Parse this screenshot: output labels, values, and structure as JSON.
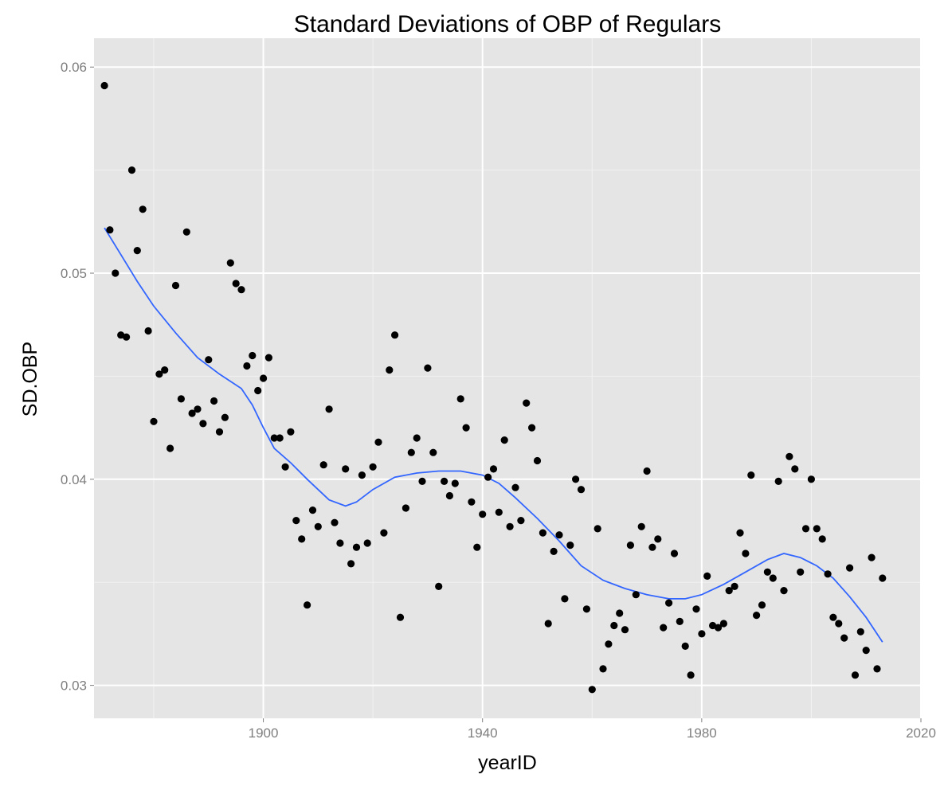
{
  "chart_data": {
    "type": "scatter",
    "title": "Standard Deviations of OBP of Regulars",
    "xlabel": "yearID",
    "ylabel": "SD.OBP",
    "xlim": [
      1869.1,
      2020
    ],
    "ylim": [
      0.0284,
      0.0614
    ],
    "x_ticks": [
      1900,
      1940,
      1980,
      2020
    ],
    "x_tick_labels": [
      "1900",
      "1940",
      "1980",
      "2020"
    ],
    "y_ticks": [
      0.03,
      0.04,
      0.05,
      0.06
    ],
    "y_tick_labels": [
      "0.03",
      "0.04",
      "0.05",
      "0.06"
    ],
    "grid": true,
    "colors": {
      "panel": "#e5e5e5",
      "grid": "#ffffff",
      "points": "#000000",
      "smooth": "#3366ff"
    },
    "points": [
      [
        1871,
        0.0591
      ],
      [
        1872,
        0.0521
      ],
      [
        1873,
        0.05
      ],
      [
        1874,
        0.047
      ],
      [
        1875,
        0.0469
      ],
      [
        1876,
        0.055
      ],
      [
        1877,
        0.0511
      ],
      [
        1878,
        0.0531
      ],
      [
        1879,
        0.0472
      ],
      [
        1880,
        0.0428
      ],
      [
        1881,
        0.0451
      ],
      [
        1882,
        0.0453
      ],
      [
        1883,
        0.0415
      ],
      [
        1884,
        0.0494
      ],
      [
        1885,
        0.0439
      ],
      [
        1886,
        0.052
      ],
      [
        1887,
        0.0432
      ],
      [
        1888,
        0.0434
      ],
      [
        1889,
        0.0427
      ],
      [
        1890,
        0.0458
      ],
      [
        1891,
        0.0438
      ],
      [
        1892,
        0.0423
      ],
      [
        1893,
        0.043
      ],
      [
        1894,
        0.0505
      ],
      [
        1895,
        0.0495
      ],
      [
        1896,
        0.0492
      ],
      [
        1897,
        0.0455
      ],
      [
        1898,
        0.046
      ],
      [
        1899,
        0.0443
      ],
      [
        1900,
        0.0449
      ],
      [
        1901,
        0.0459
      ],
      [
        1902,
        0.042
      ],
      [
        1903,
        0.042
      ],
      [
        1904,
        0.0406
      ],
      [
        1905,
        0.0423
      ],
      [
        1906,
        0.038
      ],
      [
        1907,
        0.0371
      ],
      [
        1908,
        0.0339
      ],
      [
        1909,
        0.0385
      ],
      [
        1910,
        0.0377
      ],
      [
        1911,
        0.0407
      ],
      [
        1912,
        0.0434
      ],
      [
        1913,
        0.0379
      ],
      [
        1914,
        0.0369
      ],
      [
        1915,
        0.0405
      ],
      [
        1916,
        0.0359
      ],
      [
        1917,
        0.0367
      ],
      [
        1918,
        0.0402
      ],
      [
        1919,
        0.0369
      ],
      [
        1920,
        0.0406
      ],
      [
        1921,
        0.0418
      ],
      [
        1922,
        0.0374
      ],
      [
        1923,
        0.0453
      ],
      [
        1924,
        0.047
      ],
      [
        1925,
        0.0333
      ],
      [
        1926,
        0.0386
      ],
      [
        1927,
        0.0413
      ],
      [
        1928,
        0.042
      ],
      [
        1929,
        0.0399
      ],
      [
        1930,
        0.0454
      ],
      [
        1931,
        0.0413
      ],
      [
        1932,
        0.0348
      ],
      [
        1933,
        0.0399
      ],
      [
        1934,
        0.0392
      ],
      [
        1935,
        0.0398
      ],
      [
        1936,
        0.0439
      ],
      [
        1937,
        0.0425
      ],
      [
        1938,
        0.0389
      ],
      [
        1939,
        0.0367
      ],
      [
        1940,
        0.0383
      ],
      [
        1941,
        0.0401
      ],
      [
        1942,
        0.0405
      ],
      [
        1943,
        0.0384
      ],
      [
        1944,
        0.0419
      ],
      [
        1945,
        0.0377
      ],
      [
        1946,
        0.0396
      ],
      [
        1947,
        0.038
      ],
      [
        1948,
        0.0437
      ],
      [
        1949,
        0.0425
      ],
      [
        1950,
        0.0409
      ],
      [
        1951,
        0.0374
      ],
      [
        1952,
        0.033
      ],
      [
        1953,
        0.0365
      ],
      [
        1954,
        0.0373
      ],
      [
        1955,
        0.0342
      ],
      [
        1956,
        0.0368
      ],
      [
        1957,
        0.04
      ],
      [
        1958,
        0.0395
      ],
      [
        1959,
        0.0337
      ],
      [
        1960,
        0.0298
      ],
      [
        1961,
        0.0376
      ],
      [
        1962,
        0.0308
      ],
      [
        1963,
        0.032
      ],
      [
        1964,
        0.0329
      ],
      [
        1965,
        0.0335
      ],
      [
        1966,
        0.0327
      ],
      [
        1967,
        0.0368
      ],
      [
        1968,
        0.0344
      ],
      [
        1969,
        0.0377
      ],
      [
        1970,
        0.0404
      ],
      [
        1971,
        0.0367
      ],
      [
        1972,
        0.0371
      ],
      [
        1973,
        0.0328
      ],
      [
        1974,
        0.034
      ],
      [
        1975,
        0.0364
      ],
      [
        1976,
        0.0331
      ],
      [
        1977,
        0.0319
      ],
      [
        1978,
        0.0305
      ],
      [
        1979,
        0.0337
      ],
      [
        1980,
        0.0325
      ],
      [
        1981,
        0.0353
      ],
      [
        1982,
        0.0329
      ],
      [
        1983,
        0.0328
      ],
      [
        1984,
        0.033
      ],
      [
        1985,
        0.0346
      ],
      [
        1986,
        0.0348
      ],
      [
        1987,
        0.0374
      ],
      [
        1988,
        0.0364
      ],
      [
        1989,
        0.0402
      ],
      [
        1990,
        0.0334
      ],
      [
        1991,
        0.0339
      ],
      [
        1992,
        0.0355
      ],
      [
        1993,
        0.0352
      ],
      [
        1994,
        0.0399
      ],
      [
        1995,
        0.0346
      ],
      [
        1996,
        0.0411
      ],
      [
        1997,
        0.0405
      ],
      [
        1998,
        0.0355
      ],
      [
        1999,
        0.0376
      ],
      [
        2000,
        0.04
      ],
      [
        2001,
        0.0376
      ],
      [
        2002,
        0.0371
      ],
      [
        2003,
        0.0354
      ],
      [
        2004,
        0.0333
      ],
      [
        2005,
        0.033
      ],
      [
        2006,
        0.0323
      ],
      [
        2007,
        0.0357
      ],
      [
        2008,
        0.0305
      ],
      [
        2009,
        0.0326
      ],
      [
        2010,
        0.0317
      ],
      [
        2011,
        0.0362
      ],
      [
        2012,
        0.0308
      ],
      [
        2013,
        0.0352
      ]
    ],
    "smooth_line": [
      [
        1871,
        0.0522
      ],
      [
        1874,
        0.0509
      ],
      [
        1877,
        0.0496
      ],
      [
        1880,
        0.0484
      ],
      [
        1884,
        0.0471
      ],
      [
        1888,
        0.0459
      ],
      [
        1892,
        0.0451
      ],
      [
        1896,
        0.0444
      ],
      [
        1898,
        0.0436
      ],
      [
        1900,
        0.0425
      ],
      [
        1902,
        0.0415
      ],
      [
        1905,
        0.0408
      ],
      [
        1908,
        0.04
      ],
      [
        1912,
        0.039
      ],
      [
        1915,
        0.0387
      ],
      [
        1917,
        0.0389
      ],
      [
        1920,
        0.0395
      ],
      [
        1924,
        0.0401
      ],
      [
        1928,
        0.0403
      ],
      [
        1932,
        0.0404
      ],
      [
        1936,
        0.0404
      ],
      [
        1940,
        0.0402
      ],
      [
        1943,
        0.0398
      ],
      [
        1946,
        0.0391
      ],
      [
        1950,
        0.0381
      ],
      [
        1954,
        0.037
      ],
      [
        1958,
        0.0358
      ],
      [
        1962,
        0.0351
      ],
      [
        1966,
        0.0347
      ],
      [
        1970,
        0.0344
      ],
      [
        1974,
        0.0342
      ],
      [
        1977,
        0.0342
      ],
      [
        1980,
        0.0344
      ],
      [
        1984,
        0.0349
      ],
      [
        1988,
        0.0355
      ],
      [
        1992,
        0.0361
      ],
      [
        1995,
        0.0364
      ],
      [
        1998,
        0.0362
      ],
      [
        2001,
        0.0358
      ],
      [
        2004,
        0.0352
      ],
      [
        2007,
        0.0343
      ],
      [
        2010,
        0.0333
      ],
      [
        2013,
        0.0321
      ]
    ]
  }
}
